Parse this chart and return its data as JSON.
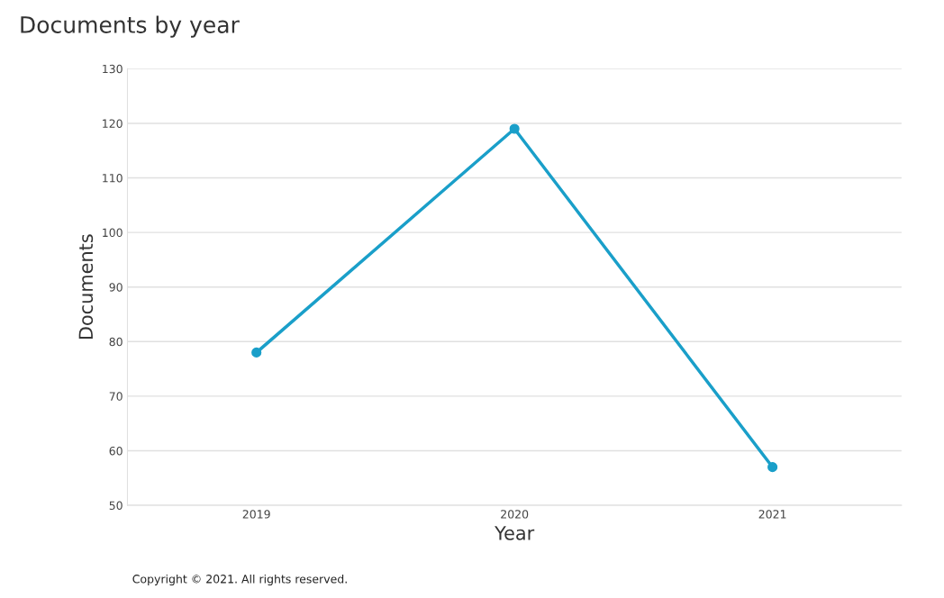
{
  "chart_data": {
    "type": "line",
    "title": "Documents by year",
    "xlabel": "Year",
    "ylabel": "Documents",
    "categories": [
      "2019",
      "2020",
      "2021"
    ],
    "series": [
      {
        "color": "#1a9fc9",
        "values": [
          78,
          119,
          57
        ]
      }
    ],
    "ylim": [
      50,
      130
    ],
    "yticks": [
      50,
      60,
      70,
      80,
      90,
      100,
      110,
      120,
      130
    ],
    "grid": "y",
    "marker": "circle",
    "line_style": "solid",
    "annotations": [
      "Copyright © 2021. All rights reserved."
    ]
  }
}
